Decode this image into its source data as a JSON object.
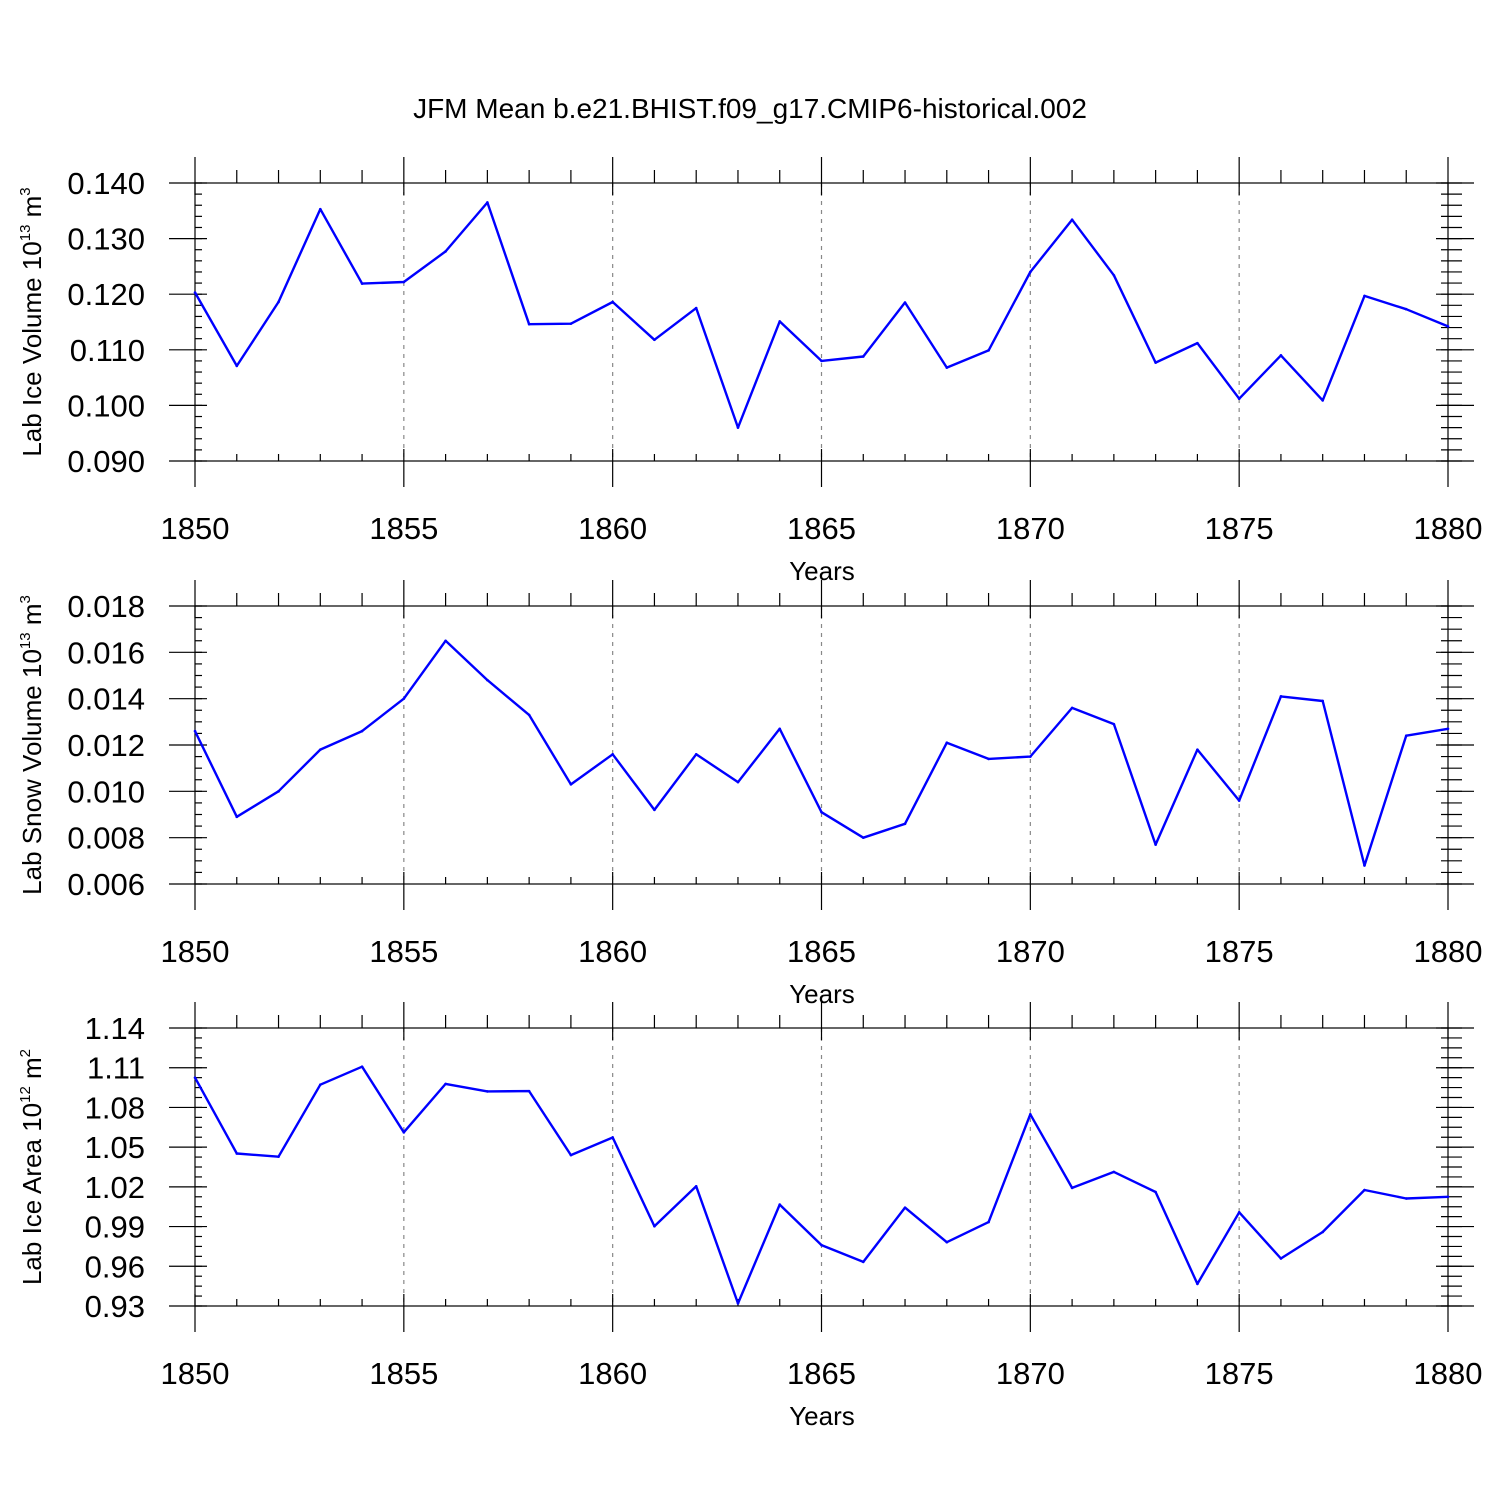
{
  "title": "JFM Mean b.e21.BHIST.f09_g17.CMIP6-historical.002",
  "chart_data": [
    {
      "type": "line",
      "ylabel": {
        "text": "Lab Ice Volume 10",
        "exp": "13",
        "unit": " m",
        "unit_exp": "3"
      },
      "xlabel": "Years",
      "xlim": [
        1850,
        1880
      ],
      "ylim": [
        0.09,
        0.14
      ],
      "xticks": [
        1850,
        1855,
        1860,
        1865,
        1870,
        1875,
        1880
      ],
      "xtick_labels": [
        "1850",
        "1855",
        "1860",
        "1865",
        "1870",
        "1875",
        "1880"
      ],
      "yticks": [
        0.09,
        0.1,
        0.11,
        0.12,
        0.13,
        0.14
      ],
      "ytick_labels": [
        "0.090",
        "0.100",
        "0.110",
        "0.120",
        "0.130",
        "0.140"
      ],
      "yminor_step": 0.002,
      "grid": "vertical dashed at major x ticks",
      "color": "#0000ff",
      "x": [
        1850,
        1851,
        1852,
        1853,
        1854,
        1855,
        1856,
        1857,
        1858,
        1859,
        1860,
        1861,
        1862,
        1863,
        1864,
        1865,
        1866,
        1867,
        1868,
        1869,
        1870,
        1871,
        1872,
        1873,
        1874,
        1875,
        1876,
        1877,
        1878,
        1879,
        1880
      ],
      "values": [
        0.1203,
        0.1071,
        0.1186,
        0.1353,
        0.1219,
        0.1222,
        0.1277,
        0.1365,
        0.1146,
        0.1147,
        0.1186,
        0.1118,
        0.1175,
        0.096,
        0.1151,
        0.108,
        0.1088,
        0.1185,
        0.1068,
        0.1099,
        0.124,
        0.1334,
        0.1234,
        0.1077,
        0.1112,
        0.1012,
        0.109,
        0.1009,
        0.1197,
        0.1173,
        0.1142
      ]
    },
    {
      "type": "line",
      "ylabel": {
        "text": "Lab Snow Volume 10",
        "exp": "13",
        "unit": " m",
        "unit_exp": "3"
      },
      "xlabel": "Years",
      "xlim": [
        1850,
        1880
      ],
      "ylim": [
        0.006,
        0.018
      ],
      "xticks": [
        1850,
        1855,
        1860,
        1865,
        1870,
        1875,
        1880
      ],
      "xtick_labels": [
        "1850",
        "1855",
        "1860",
        "1865",
        "1870",
        "1875",
        "1880"
      ],
      "yticks": [
        0.006,
        0.008,
        0.01,
        0.012,
        0.014,
        0.016,
        0.018
      ],
      "ytick_labels": [
        "0.006",
        "0.008",
        "0.010",
        "0.012",
        "0.014",
        "0.016",
        "0.018"
      ],
      "yminor_step": 0.0005,
      "grid": "vertical dashed at major x ticks",
      "color": "#0000ff",
      "x": [
        1850,
        1851,
        1852,
        1853,
        1854,
        1855,
        1856,
        1857,
        1858,
        1859,
        1860,
        1861,
        1862,
        1863,
        1864,
        1865,
        1866,
        1867,
        1868,
        1869,
        1870,
        1871,
        1872,
        1873,
        1874,
        1875,
        1876,
        1877,
        1878,
        1879,
        1880
      ],
      "values": [
        0.0126,
        0.0089,
        0.01,
        0.0118,
        0.0126,
        0.014,
        0.0165,
        0.0148,
        0.0133,
        0.0103,
        0.0116,
        0.0092,
        0.0116,
        0.0104,
        0.0127,
        0.0091,
        0.008,
        0.0086,
        0.0121,
        0.0114,
        0.0115,
        0.0136,
        0.0129,
        0.0077,
        0.0118,
        0.0096,
        0.0141,
        0.0139,
        0.0068,
        0.0124,
        0.0127
      ]
    },
    {
      "type": "line",
      "ylabel": {
        "text": "Lab Ice Area 10",
        "exp": "12",
        "unit": " m",
        "unit_exp": "2"
      },
      "xlabel": "Years",
      "xlim": [
        1850,
        1880
      ],
      "ylim": [
        0.93,
        1.14
      ],
      "xticks": [
        1850,
        1855,
        1860,
        1865,
        1870,
        1875,
        1880
      ],
      "xtick_labels": [
        "1850",
        "1855",
        "1860",
        "1865",
        "1870",
        "1875",
        "1880"
      ],
      "yticks": [
        0.93,
        0.96,
        0.99,
        1.02,
        1.05,
        1.08,
        1.11,
        1.14
      ],
      "ytick_labels": [
        "0.93",
        "0.96",
        "0.99",
        "1.02",
        "1.05",
        "1.08",
        "1.11",
        "1.14"
      ],
      "yminor_step": 0.0075,
      "grid": "vertical dashed at major x ticks",
      "color": "#0000ff",
      "x": [
        1850,
        1851,
        1852,
        1853,
        1854,
        1855,
        1856,
        1857,
        1858,
        1859,
        1860,
        1861,
        1862,
        1863,
        1864,
        1865,
        1866,
        1867,
        1868,
        1869,
        1870,
        1871,
        1872,
        1873,
        1874,
        1875,
        1876,
        1877,
        1878,
        1879,
        1880
      ],
      "values": [
        1.1025,
        1.0452,
        1.0428,
        1.0972,
        1.1108,
        1.0612,
        1.0978,
        1.0921,
        1.0923,
        1.044,
        1.0573,
        0.9902,
        1.0204,
        0.932,
        1.0066,
        0.976,
        0.9633,
        1.0043,
        0.9782,
        0.9934,
        1.0748,
        1.0192,
        1.0313,
        1.0161,
        0.9467,
        1.0008,
        0.9659,
        0.9859,
        1.0176,
        1.0112,
        1.0125
      ]
    }
  ]
}
